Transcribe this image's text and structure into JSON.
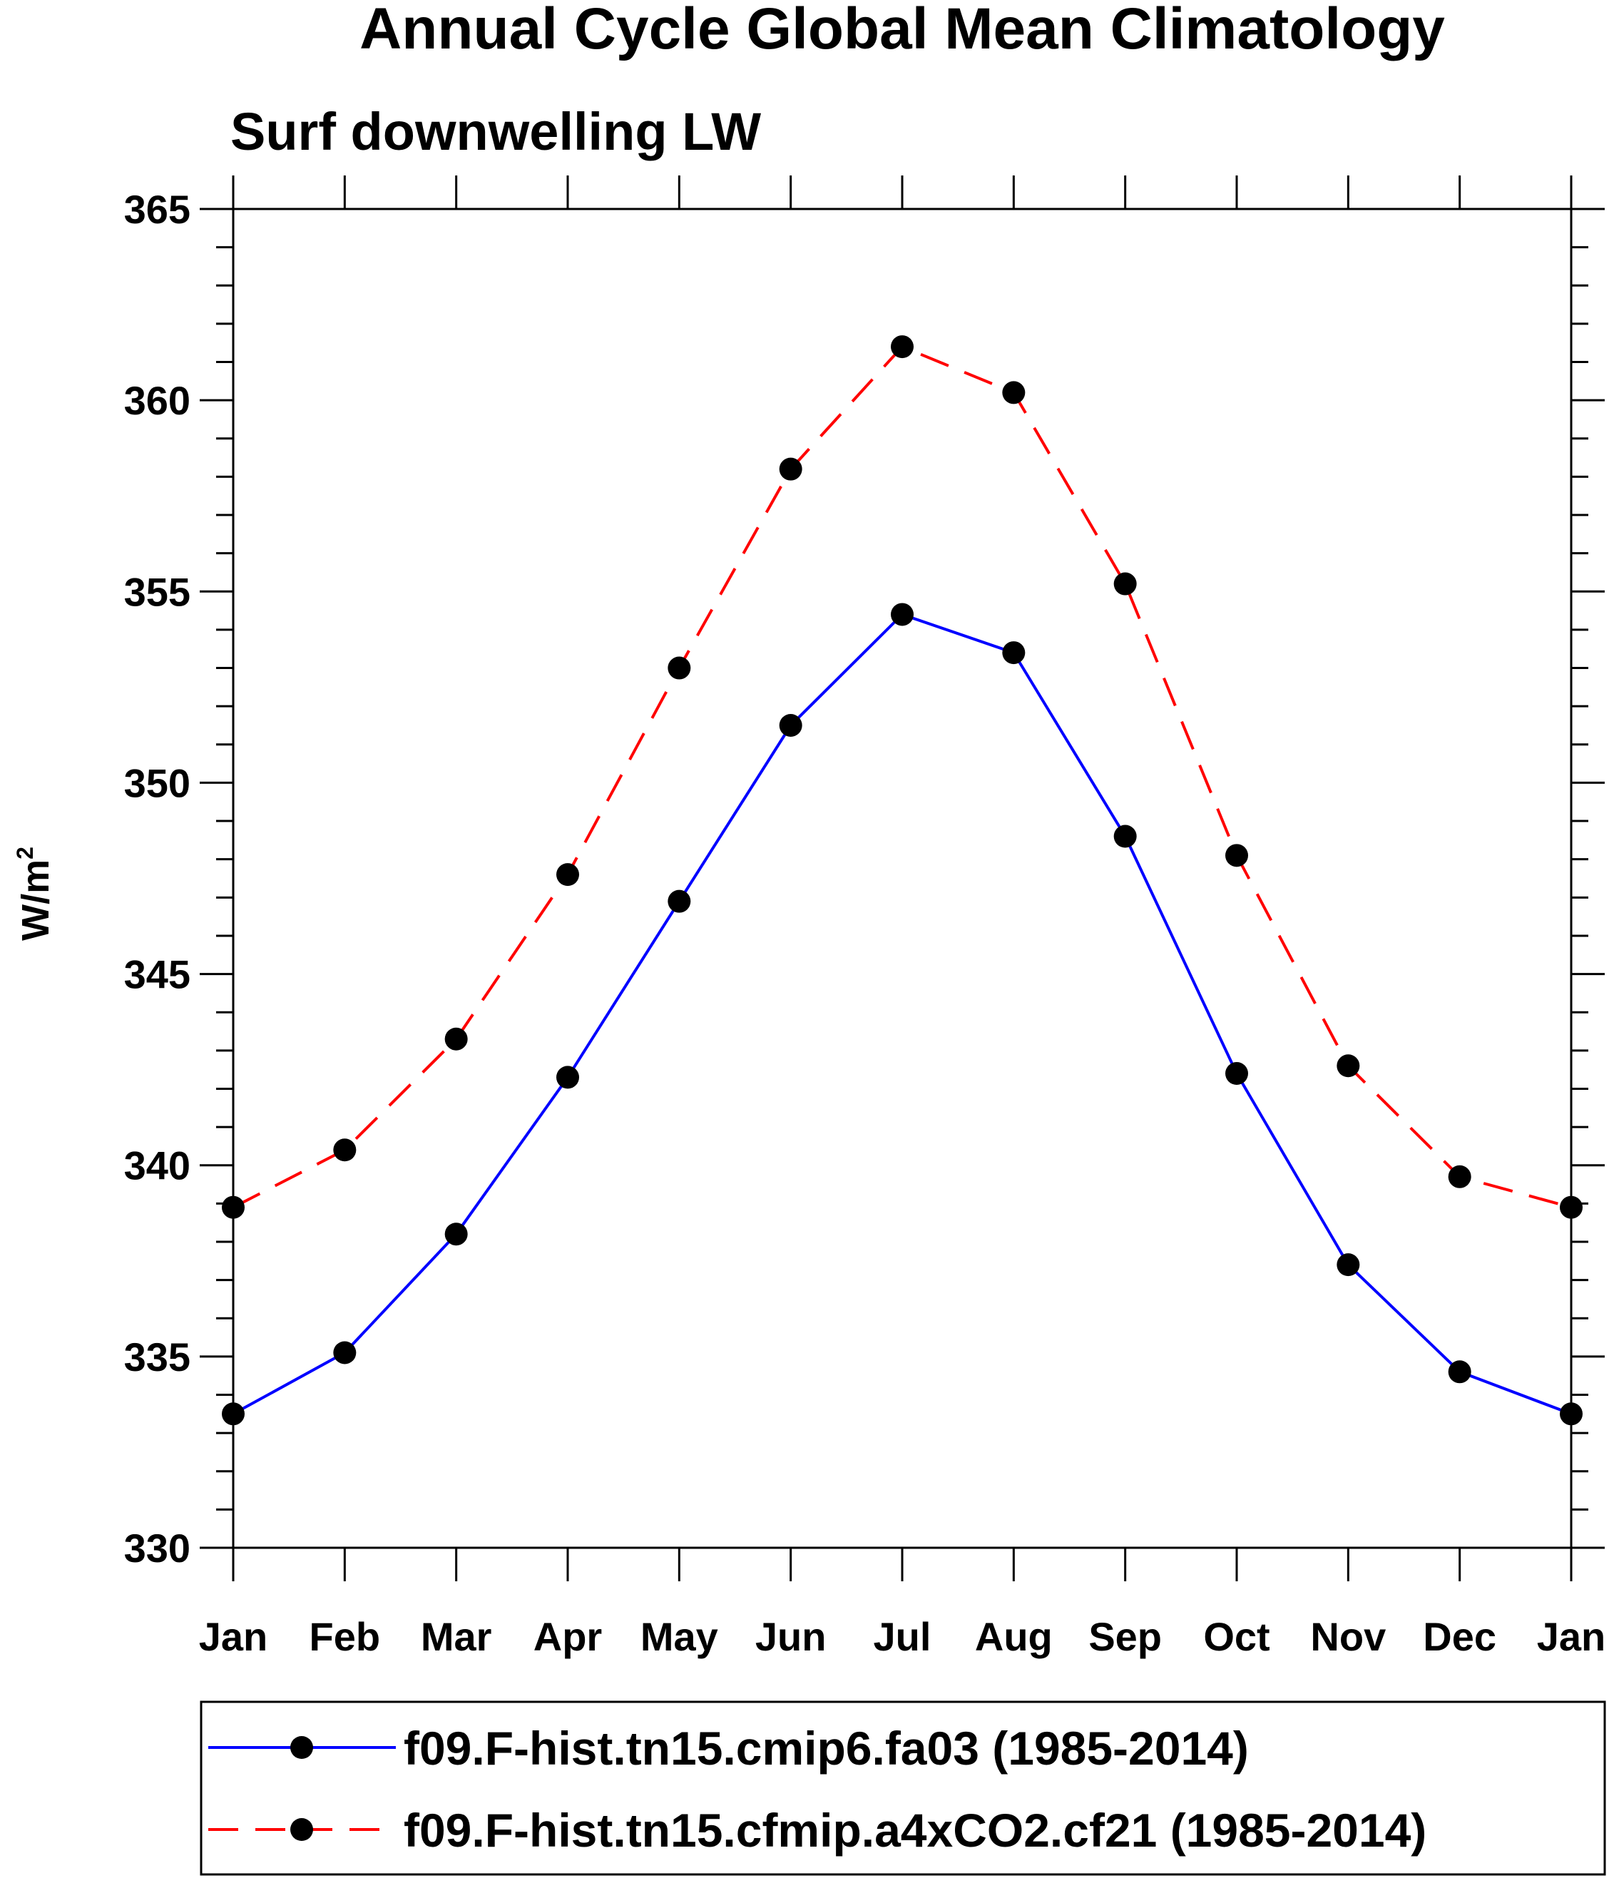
{
  "chart_data": {
    "type": "line",
    "title": "Annual Cycle Global Mean Climatology",
    "subtitle": "Surf downwelling LW",
    "ylabel": "W/m",
    "ylabel_sup": "2",
    "xlabel": "",
    "categories": [
      "Jan",
      "Feb",
      "Mar",
      "Apr",
      "May",
      "Jun",
      "Jul",
      "Aug",
      "Sep",
      "Oct",
      "Nov",
      "Dec",
      "Jan"
    ],
    "ylim": [
      330,
      365
    ],
    "yticks": [
      330,
      335,
      340,
      345,
      350,
      355,
      360,
      365
    ],
    "y_minor_step": 1,
    "grid": false,
    "legend_position": "bottom",
    "series": [
      {
        "name": "f09.F-hist.tn15.cmip6.fa03 (1985-2014)",
        "color": "#0000ff",
        "line_style": "solid",
        "marker": "filled-circle",
        "values": [
          333.5,
          335.1,
          338.2,
          342.3,
          346.9,
          351.5,
          354.4,
          353.4,
          348.6,
          342.4,
          337.4,
          334.6,
          333.5
        ]
      },
      {
        "name": "f09.F-hist.tn15.cfmip.a4xCO2.cf21 (1985-2014)",
        "color": "#ff0000",
        "line_style": "dashed",
        "marker": "filled-circle",
        "values": [
          338.9,
          340.4,
          343.3,
          347.6,
          353.0,
          358.2,
          361.4,
          360.2,
          355.2,
          348.1,
          342.6,
          339.7,
          338.9
        ]
      }
    ]
  }
}
